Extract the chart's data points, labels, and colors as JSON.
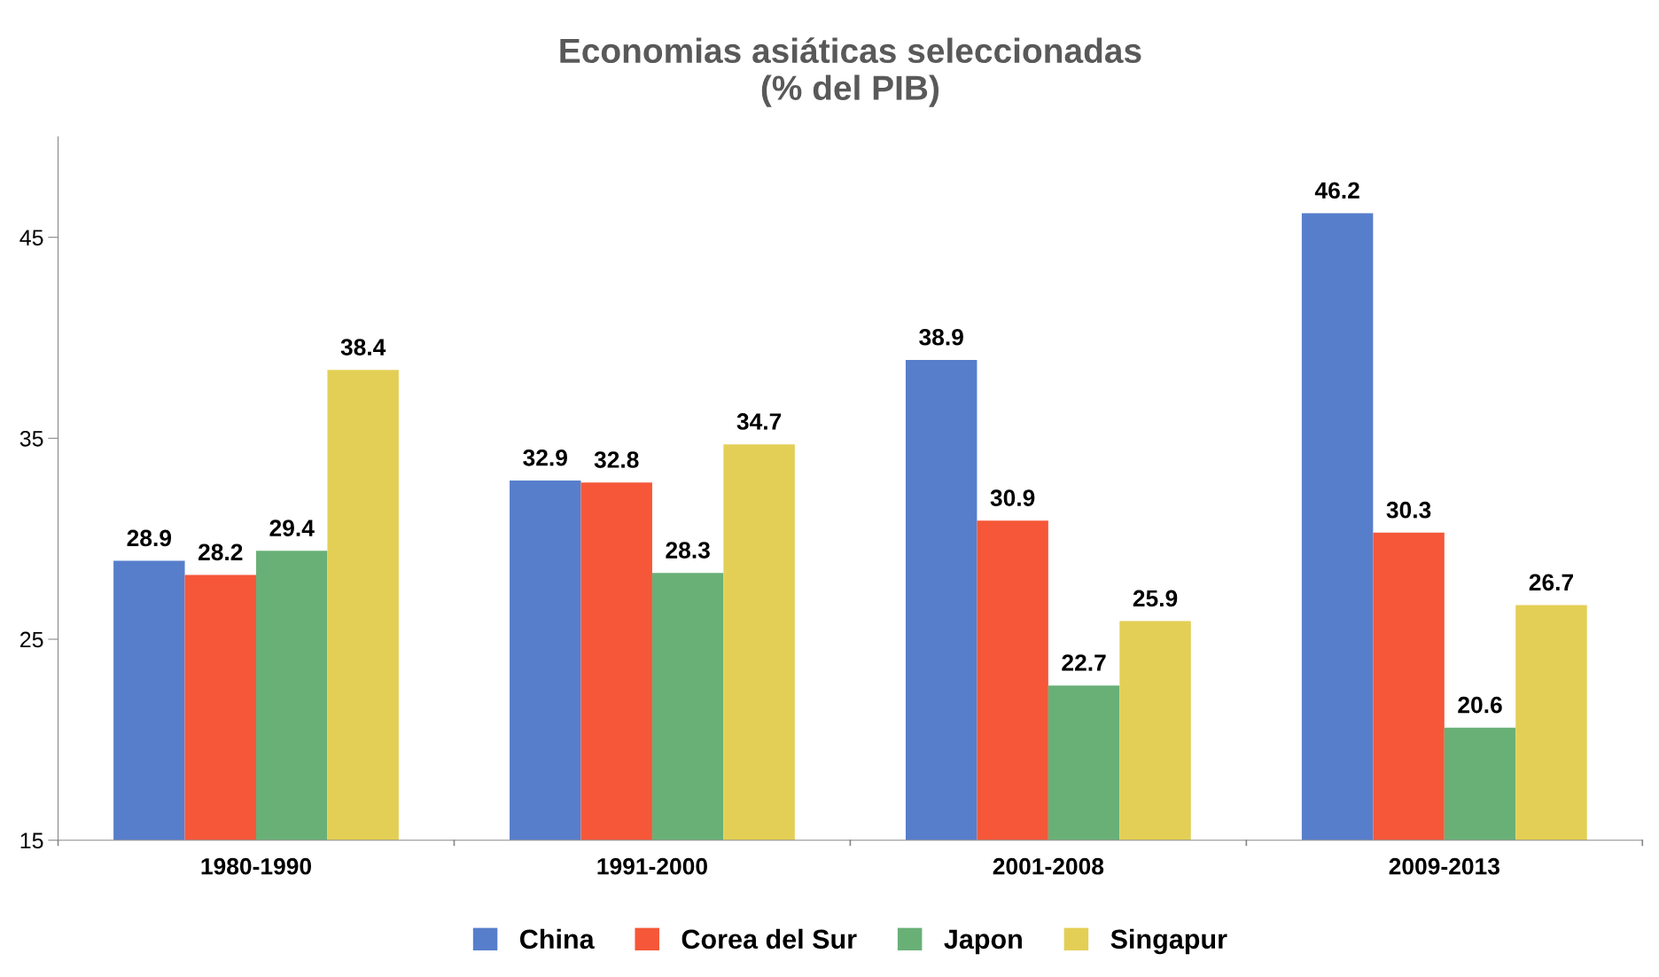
{
  "chart_data": {
    "type": "bar",
    "title": "Economias asiáticas seleccionadas\n(% del PIB)",
    "categories": [
      "1980-1990",
      "1991-2000",
      "2001-2008",
      "2009-2013"
    ],
    "series": [
      {
        "name": "China",
        "color": "#577ecb",
        "values": [
          28.9,
          32.9,
          38.9,
          46.2
        ]
      },
      {
        "name": "Corea del Sur",
        "color": "#f55738",
        "values": [
          28.2,
          32.8,
          30.9,
          30.3
        ]
      },
      {
        "name": "Japon",
        "color": "#69b077",
        "values": [
          29.4,
          28.3,
          22.7,
          20.6
        ]
      },
      {
        "name": "Singapur",
        "color": "#e3cf55",
        "values": [
          38.4,
          34.7,
          25.9,
          26.7
        ]
      }
    ],
    "ylim": [
      15,
      50
    ],
    "yticks": [
      15,
      25,
      35,
      45
    ],
    "grid": false,
    "legend": "bottom",
    "data_labels": true
  }
}
